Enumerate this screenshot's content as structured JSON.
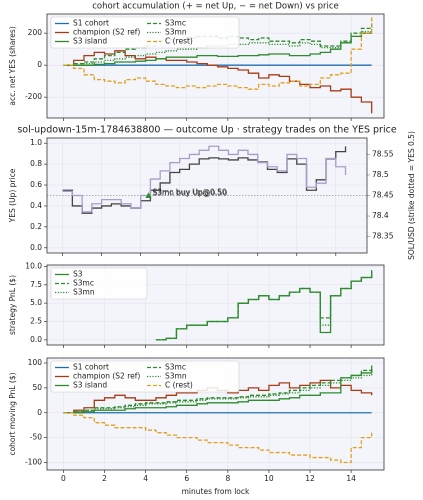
{
  "chart_data": [
    {
      "type": "line",
      "title": "cohort accumulation (+ = net Up, − = net Down) vs price",
      "ylabel": "acc. net YES (shares)",
      "xlim": [
        -0.8,
        15.6
      ],
      "xticks": [
        0,
        2,
        4,
        6,
        8,
        10,
        12,
        14
      ],
      "ylim": [
        -330,
        320
      ],
      "yticks": [
        -200,
        0,
        200
      ],
      "grid": true,
      "drawstyle": "steps-post",
      "legend": "upper left",
      "legend_columns": 2,
      "x": [
        0,
        0.5,
        1,
        1.5,
        2,
        2.5,
        3,
        3.5,
        4,
        4.5,
        5,
        5.5,
        6,
        6.5,
        7,
        7.5,
        8,
        8.5,
        9,
        9.5,
        10,
        10.5,
        11,
        11.5,
        12,
        12.5,
        13,
        13.5,
        14,
        14.5,
        15
      ],
      "series": [
        {
          "name": "S1 cohort",
          "color": "#1f6fb4",
          "dash": "solid",
          "values": [
            0,
            0,
            0,
            0,
            0,
            0,
            0,
            0,
            0,
            0,
            0,
            0,
            0,
            0,
            0,
            0,
            0,
            0,
            0,
            0,
            0,
            0,
            0,
            0,
            0,
            0,
            0,
            0,
            0,
            0,
            0
          ]
        },
        {
          "name": "champion (S2 ref)",
          "color": "#a63c17",
          "dash": "solid",
          "values": [
            0,
            30,
            60,
            80,
            70,
            90,
            60,
            40,
            50,
            40,
            30,
            30,
            20,
            10,
            0,
            -10,
            -20,
            -30,
            -50,
            -80,
            -60,
            -70,
            -100,
            -120,
            -140,
            -130,
            -160,
            -150,
            -200,
            -230,
            -300
          ]
        },
        {
          "name": "S3 island",
          "color": "#2e8b2e",
          "dash": "solid",
          "values": [
            0,
            0,
            0,
            5,
            10,
            20,
            20,
            25,
            30,
            40,
            50,
            50,
            50,
            60,
            60,
            55,
            55,
            60,
            60,
            65,
            70,
            70,
            60,
            60,
            70,
            80,
            100,
            140,
            180,
            200,
            200
          ]
        },
        {
          "name": "S3mc",
          "color": "#2e8b2e",
          "dash": "dashed",
          "values": [
            0,
            10,
            20,
            40,
            60,
            80,
            100,
            110,
            120,
            150,
            160,
            160,
            170,
            180,
            180,
            170,
            180,
            170,
            160,
            170,
            150,
            150,
            140,
            160,
            150,
            120,
            120,
            150,
            200,
            230,
            280
          ]
        },
        {
          "name": "S3mn",
          "color": "#2e8b2e",
          "dash": "dotted",
          "values": [
            0,
            0,
            10,
            20,
            30,
            40,
            50,
            60,
            70,
            80,
            90,
            100,
            100,
            110,
            120,
            120,
            130,
            130,
            140,
            140,
            130,
            130,
            120,
            140,
            130,
            110,
            110,
            140,
            180,
            210,
            260
          ]
        },
        {
          "name": "C (rest)",
          "color": "#e0a020",
          "dash": "dashed",
          "values": [
            0,
            -20,
            -60,
            -90,
            -100,
            -110,
            -90,
            -80,
            -100,
            -120,
            -130,
            -140,
            -130,
            -140,
            -130,
            -120,
            -130,
            -140,
            -150,
            -120,
            -130,
            -110,
            -100,
            -130,
            -120,
            -80,
            -60,
            -50,
            100,
            200,
            300
          ]
        }
      ]
    },
    {
      "type": "line",
      "title": "sol-updown-15m-1784638800 — outcome Up · strategy trades on the YES price",
      "ylabel": "YES (Up) price",
      "y2label": "SOL/USD (strike dotted = YES 0.5)",
      "xlim": [
        -0.8,
        15.6
      ],
      "xticks": [
        0,
        2,
        4,
        6,
        8,
        10,
        12,
        14
      ],
      "ylim": [
        -0.05,
        1.05
      ],
      "yticks": [
        {
          "value": 0,
          "label": "0.0"
        },
        0.2,
        0.4,
        0.6,
        0.8,
        {
          "value": 1,
          "label": "1.0"
        }
      ],
      "y2lim": [
        78.31,
        78.59
      ],
      "y2ticks": [
        78.35,
        78.4,
        78.45,
        78.5,
        78.55
      ],
      "y2color": "#9b80b8",
      "grid": true,
      "drawstyle": "steps-post",
      "strike": 0.5,
      "x": [
        0,
        0.5,
        1,
        1.5,
        2,
        2.5,
        3,
        3.5,
        4,
        4.5,
        5,
        5.5,
        6,
        6.5,
        7,
        7.5,
        8,
        8.5,
        9,
        9.5,
        10,
        10.5,
        11,
        11.5,
        12,
        12.5,
        13,
        13.5,
        14,
        14.5
      ],
      "series": [
        {
          "name": "YES price",
          "color": "#444444",
          "dash": "solid",
          "values": [
            0.55,
            0.4,
            0.33,
            0.38,
            0.4,
            0.42,
            0.4,
            0.38,
            0.45,
            0.55,
            0.62,
            0.72,
            0.75,
            0.8,
            0.85,
            0.86,
            0.85,
            0.84,
            0.86,
            0.84,
            0.82,
            0.75,
            0.72,
            0.85,
            0.8,
            0.55,
            0.65,
            0.85,
            0.92,
            0.97
          ]
        },
        {
          "name": "SOL/USD",
          "color": "#a89cc8",
          "dash": "solid",
          "axis": "y2",
          "values": [
            78.46,
            78.45,
            78.41,
            78.43,
            78.44,
            78.44,
            78.43,
            78.42,
            78.45,
            78.49,
            78.51,
            78.53,
            78.54,
            78.55,
            78.56,
            78.57,
            78.56,
            78.55,
            78.56,
            78.55,
            78.53,
            78.52,
            78.51,
            78.55,
            78.54,
            78.47,
            78.48,
            78.54,
            78.52,
            78.5
          ]
        }
      ],
      "annotations": [
        {
          "text": "S3mc buy Up@0.50",
          "x": 4.4,
          "y": 0.5,
          "color": "#2e8b2e"
        },
        {
          "text": "S3mn buy Up@0.50",
          "x": 4.4,
          "y": 0.5,
          "color": "#2e8b2e"
        }
      ]
    },
    {
      "type": "line",
      "ylabel": "strategy PnL ($)",
      "xlim": [
        -0.8,
        15.6
      ],
      "xticks": [
        0,
        2,
        4,
        6,
        8,
        10,
        12,
        14
      ],
      "ylim": [
        -0.7,
        10.2
      ],
      "yticks": [
        {
          "value": 0,
          "label": "0.0"
        },
        2.5,
        {
          "value": 5,
          "label": "5.0"
        },
        7.5,
        {
          "value": 10,
          "label": "10.0"
        }
      ],
      "grid": true,
      "drawstyle": "steps-post",
      "legend": "upper left",
      "legend_columns": 1,
      "x": [
        4.5,
        5,
        5.5,
        6,
        6.5,
        7,
        7.5,
        8,
        8.5,
        9,
        9.5,
        10,
        10.5,
        11,
        11.5,
        12,
        12.5,
        13,
        13.5,
        14,
        14.5,
        15
      ],
      "series": [
        {
          "name": "S3",
          "color": "#2e8b2e",
          "dash": "solid",
          "values": [
            0,
            0.2,
            1.5,
            2,
            2,
            2.5,
            2.5,
            3,
            5,
            5.5,
            6,
            5.5,
            6,
            6.5,
            7,
            6.5,
            1,
            6,
            7,
            8,
            8.5,
            9.5
          ]
        },
        {
          "name": "S3mc",
          "color": "#2e8b2e",
          "dash": "dashed",
          "values": [
            0,
            0.2,
            1.5,
            2,
            2,
            2.5,
            2.5,
            3,
            5,
            5.5,
            6,
            5.5,
            6,
            6.5,
            7,
            6.5,
            3,
            6,
            7,
            8,
            8.5,
            9.3
          ]
        },
        {
          "name": "S3mn",
          "color": "#2e8b2e",
          "dash": "dotted",
          "values": [
            0,
            0.2,
            1.5,
            2,
            2,
            2.5,
            2.5,
            3,
            5,
            5.5,
            6,
            5.5,
            6,
            6.5,
            7,
            6.5,
            2,
            6,
            7,
            8,
            8.5,
            9.1
          ]
        }
      ]
    },
    {
      "type": "line",
      "ylabel": "cohort moving PnL ($)",
      "xlabel": "minutes from lock",
      "xlim": [
        -0.8,
        15.6
      ],
      "xticks": [
        0,
        2,
        4,
        6,
        8,
        10,
        12,
        14
      ],
      "ylim": [
        -115,
        110
      ],
      "yticks": [
        -100,
        -50,
        0,
        50,
        100
      ],
      "grid": true,
      "drawstyle": "steps-post",
      "legend": "upper left",
      "legend_columns": 2,
      "x": [
        0,
        0.5,
        1,
        1.5,
        2,
        2.5,
        3,
        3.5,
        4,
        4.5,
        5,
        5.5,
        6,
        6.5,
        7,
        7.5,
        8,
        8.5,
        9,
        9.5,
        10,
        10.5,
        11,
        11.5,
        12,
        12.5,
        13,
        13.5,
        14,
        14.5,
        15
      ],
      "series": [
        {
          "name": "S1 cohort",
          "color": "#1f6fb4",
          "dash": "solid",
          "values": [
            0,
            0,
            0,
            0,
            0,
            0,
            0,
            0,
            0,
            0,
            0,
            0,
            0,
            0,
            0,
            0,
            0,
            0,
            0,
            0,
            0,
            0,
            0,
            0,
            0,
            0,
            0,
            0,
            0,
            0,
            0
          ]
        },
        {
          "name": "champion (S2 ref)",
          "color": "#a63c17",
          "dash": "solid",
          "values": [
            0,
            5,
            10,
            25,
            30,
            35,
            30,
            25,
            25,
            30,
            35,
            40,
            40,
            45,
            50,
            45,
            40,
            45,
            50,
            45,
            55,
            60,
            50,
            55,
            60,
            65,
            50,
            55,
            45,
            40,
            35
          ]
        },
        {
          "name": "S3 island",
          "color": "#2e8b2e",
          "dash": "solid",
          "values": [
            0,
            0,
            2,
            5,
            5,
            5,
            8,
            10,
            10,
            10,
            12,
            15,
            15,
            18,
            20,
            20,
            20,
            22,
            25,
            25,
            25,
            28,
            30,
            35,
            35,
            40,
            40,
            70,
            75,
            80,
            95
          ]
        },
        {
          "name": "S3mc",
          "color": "#2e8b2e",
          "dash": "dashed",
          "values": [
            0,
            2,
            5,
            10,
            10,
            12,
            15,
            18,
            20,
            20,
            22,
            25,
            25,
            28,
            30,
            30,
            30,
            32,
            35,
            35,
            38,
            40,
            45,
            50,
            55,
            60,
            65,
            70,
            75,
            85,
            90
          ]
        },
        {
          "name": "S3mn",
          "color": "#2e8b2e",
          "dash": "dotted",
          "values": [
            0,
            2,
            5,
            8,
            8,
            10,
            12,
            15,
            18,
            18,
            20,
            22,
            22,
            25,
            28,
            28,
            28,
            30,
            32,
            32,
            35,
            38,
            40,
            45,
            50,
            55,
            60,
            65,
            70,
            75,
            85
          ]
        },
        {
          "name": "C (rest)",
          "color": "#e0a020",
          "dash": "dashed",
          "values": [
            0,
            -5,
            -10,
            -20,
            -25,
            -30,
            -30,
            -30,
            -35,
            -40,
            -45,
            -50,
            -50,
            -55,
            -60,
            -60,
            -65,
            -70,
            -70,
            -75,
            -80,
            -80,
            -85,
            -85,
            -90,
            -90,
            -95,
            -100,
            -70,
            -50,
            -40
          ]
        }
      ]
    }
  ]
}
